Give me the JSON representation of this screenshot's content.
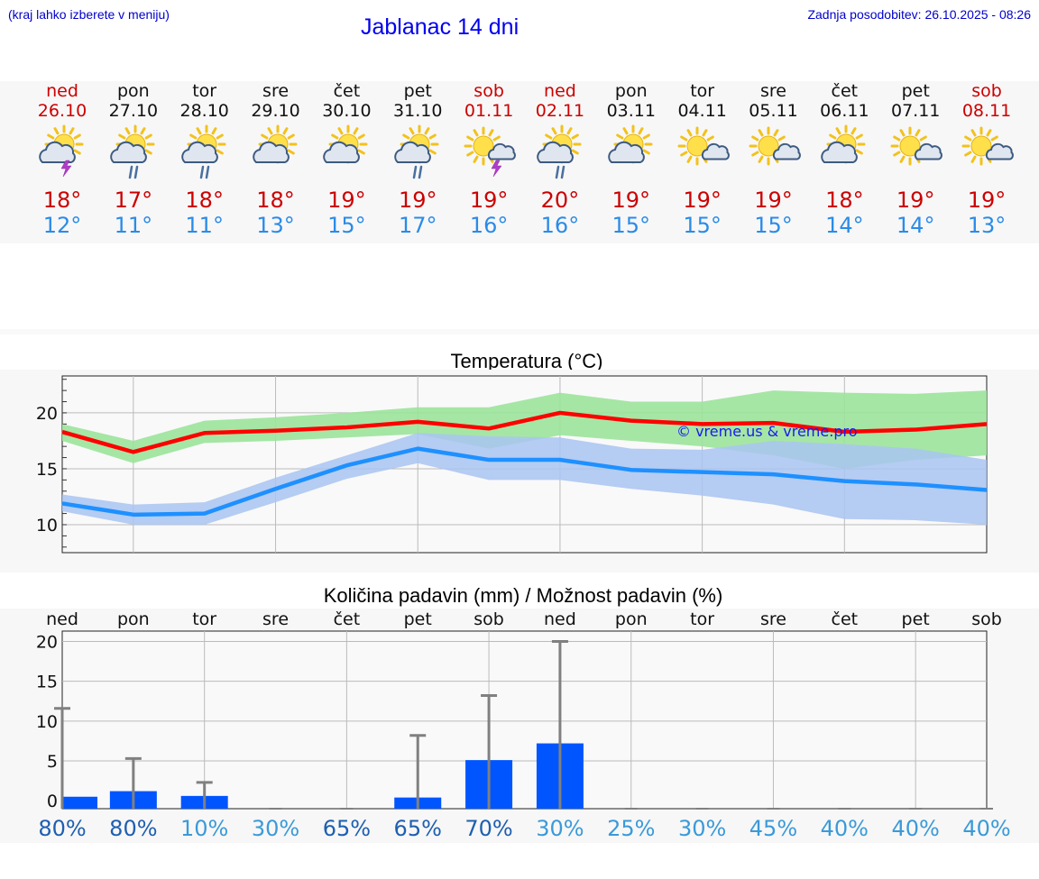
{
  "header": {
    "menu_hint": "(kraj lahko izberete v meniju)",
    "title": "Jablanac 14 dni",
    "last_update": "Zadnja posodobitev: 26.10.2025 - 08:26"
  },
  "days": [
    {
      "name": "ned",
      "date": "26.10",
      "weekend": true,
      "icon": "sun-cloud-thunder-icon",
      "max": "18°",
      "min": "12°"
    },
    {
      "name": "pon",
      "date": "27.10",
      "weekend": false,
      "icon": "sun-cloud-rain-icon",
      "max": "17°",
      "min": "11°"
    },
    {
      "name": "tor",
      "date": "28.10",
      "weekend": false,
      "icon": "sun-cloud-rain-icon",
      "max": "18°",
      "min": "11°"
    },
    {
      "name": "sre",
      "date": "29.10",
      "weekend": false,
      "icon": "sun-cloud-icon",
      "max": "18°",
      "min": "13°"
    },
    {
      "name": "čet",
      "date": "30.10",
      "weekend": false,
      "icon": "sun-cloud-icon",
      "max": "19°",
      "min": "15°"
    },
    {
      "name": "pet",
      "date": "31.10",
      "weekend": false,
      "icon": "sun-cloud-rain-icon",
      "max": "19°",
      "min": "17°"
    },
    {
      "name": "sob",
      "date": "01.11",
      "weekend": true,
      "icon": "sun-small-cloud-thunder-icon",
      "max": "19°",
      "min": "16°"
    },
    {
      "name": "ned",
      "date": "02.11",
      "weekend": true,
      "icon": "sun-cloud-rain-icon",
      "max": "20°",
      "min": "16°"
    },
    {
      "name": "pon",
      "date": "03.11",
      "weekend": false,
      "icon": "sun-cloud-icon",
      "max": "19°",
      "min": "15°"
    },
    {
      "name": "tor",
      "date": "04.11",
      "weekend": false,
      "icon": "sun-small-cloud-icon",
      "max": "19°",
      "min": "15°"
    },
    {
      "name": "sre",
      "date": "05.11",
      "weekend": false,
      "icon": "sun-small-cloud-icon",
      "max": "19°",
      "min": "15°"
    },
    {
      "name": "čet",
      "date": "06.11",
      "weekend": false,
      "icon": "sun-cloud-icon",
      "max": "18°",
      "min": "14°"
    },
    {
      "name": "pet",
      "date": "07.11",
      "weekend": false,
      "icon": "sun-small-cloud-icon",
      "max": "19°",
      "min": "14°"
    },
    {
      "name": "sob",
      "date": "08.11",
      "weekend": true,
      "icon": "sun-small-cloud-icon",
      "max": "19°",
      "min": "13°"
    }
  ],
  "colors": {
    "max_line": "#ff0000",
    "max_band": "#9be39b",
    "min_line": "#1e90ff",
    "min_band": "#a9c4f2",
    "bar": "#0055ff",
    "error_bar": "#808080",
    "pct_dark": "#1e5fb0",
    "pct_light": "#3a9ad9"
  },
  "chart_data": [
    {
      "type": "line",
      "title": "Temperatura (°C)",
      "watermark": "© vreme.us & vreme.pro",
      "ylim": [
        7.5,
        23.3
      ],
      "yticks": [
        10,
        15,
        20
      ],
      "x_days": 13,
      "grid": true,
      "series": [
        {
          "role": "max",
          "x": [
            0,
            1,
            2,
            3,
            4,
            5,
            6,
            7,
            8,
            9,
            10,
            11,
            12,
            13
          ],
          "values": [
            18.3,
            16.5,
            18.2,
            18.4,
            18.7,
            19.2,
            18.6,
            20.0,
            19.3,
            19.0,
            19.1,
            18.3,
            18.5,
            19.0
          ],
          "band_low": [
            17.5,
            15.5,
            17.3,
            17.5,
            17.8,
            18.1,
            16.8,
            18.0,
            17.5,
            17.0,
            16.2,
            15.0,
            15.8,
            16.2
          ],
          "band_high": [
            19.0,
            17.5,
            19.3,
            19.6,
            20.0,
            20.5,
            20.5,
            21.8,
            21.0,
            21.0,
            22.0,
            21.8,
            21.7,
            22.0
          ]
        },
        {
          "role": "min",
          "x": [
            0,
            1,
            2,
            3,
            4,
            5,
            6,
            7,
            8,
            9,
            10,
            11,
            12,
            13
          ],
          "values": [
            11.9,
            10.9,
            11.0,
            13.2,
            15.3,
            16.8,
            15.8,
            15.8,
            14.9,
            14.7,
            14.5,
            13.9,
            13.6,
            13.1
          ],
          "band_low": [
            11.2,
            10.0,
            10.0,
            12.0,
            14.1,
            15.5,
            14.0,
            14.0,
            13.2,
            12.6,
            11.8,
            10.5,
            10.4,
            10.0
          ],
          "band_high": [
            12.7,
            11.8,
            12.0,
            14.2,
            16.2,
            18.2,
            17.9,
            17.8,
            16.8,
            16.7,
            17.5,
            17.2,
            16.8,
            15.8
          ]
        }
      ]
    },
    {
      "type": "bar",
      "title": "Količina padavin (mm) / Možnost padavin (%)",
      "ylim": [
        -1,
        21.3
      ],
      "yticks": [
        0,
        5,
        10,
        15,
        20
      ],
      "categories": [
        "ned",
        "pon",
        "tor",
        "sre",
        "čet",
        "pet",
        "sob",
        "ned",
        "pon",
        "tor",
        "sre",
        "čet",
        "pet",
        "sob"
      ],
      "values": [
        0.5,
        1.2,
        0.6,
        0,
        0,
        0.4,
        5.1,
        7.2,
        0,
        0,
        0,
        0,
        0,
        0
      ],
      "error_high": [
        11.6,
        5.3,
        2.3,
        0,
        0,
        8.2,
        13.2,
        20.0,
        0,
        0,
        0,
        0,
        0,
        0
      ],
      "chance": [
        "80%",
        "80%",
        "10%",
        "30%",
        "65%",
        "65%",
        "70%",
        "30%",
        "25%",
        "30%",
        "45%",
        "40%",
        "40%",
        "40%"
      ],
      "chance_dark": [
        true,
        true,
        false,
        false,
        true,
        true,
        true,
        false,
        false,
        false,
        false,
        false,
        false,
        false
      ]
    }
  ]
}
